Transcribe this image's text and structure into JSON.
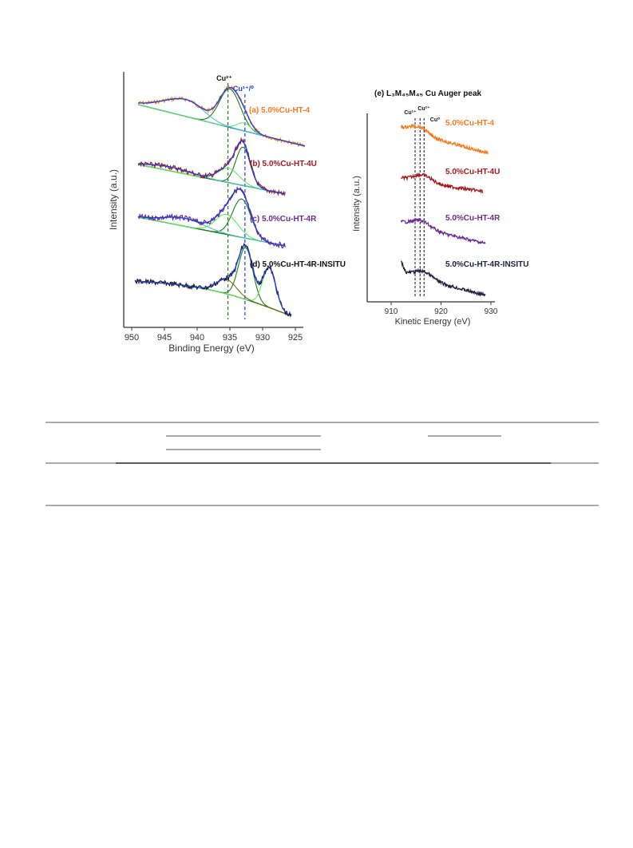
{
  "colors": {
    "orange": "#f47b20",
    "red": "#a6191c",
    "purple": "#6a2c8c",
    "black": "#111111",
    "darkgreen": "#1d7a1d",
    "blue": "#1f3ed6",
    "navy": "#1b2140",
    "cyan": "#46c4d1",
    "lime": "#62e862",
    "olive": "#7a6a0c"
  },
  "chart_data": [
    {
      "type": "line",
      "panel": "xps",
      "xlabel": "Binding Energy (eV)",
      "ylabel": "Intensity (a.u.)",
      "xlim": [
        952,
        922
      ],
      "x_reversed": true,
      "x_ticks": [
        "950",
        "945",
        "940",
        "935",
        "930",
        "925"
      ],
      "reference_lines": [
        {
          "label": "Cu²⁺",
          "x": 935.3,
          "style": "dashed",
          "color": "#1d7a1d"
        },
        {
          "label": "Cu¹⁺/⁰",
          "x": 932.7,
          "style": "dashed",
          "color": "#1f3ed6"
        }
      ],
      "series": [
        {
          "name": "(a) 5.0%Cu-HT-4",
          "color": "#f47b20",
          "x_range": [
            949,
            923.5
          ]
        },
        {
          "name": "(b) 5.0%Cu-HT-4U",
          "color": "#a6191c",
          "x_range": [
            949,
            926.5
          ]
        },
        {
          "name": "(c) 5.0%Cu-HT-4R",
          "color": "#6a2c8c",
          "x_range": [
            949,
            926.5
          ]
        },
        {
          "name": "(d) 5.0%Cu-HT-4R-INSITU",
          "color": "#111111",
          "x_range": [
            949.5,
            925.5
          ]
        }
      ]
    },
    {
      "type": "line",
      "panel": "auger",
      "title": "(e) L₃M₄₅M₄₅ Cu Auger peak",
      "xlabel": "Kinetic Energy (eV)",
      "ylabel": "Intensity (a.u.)",
      "xlim": [
        905,
        930
      ],
      "x_ticks": [
        "910",
        "920",
        "930"
      ],
      "reference_lines": [
        {
          "label": "Cu¹⁺",
          "x": 914.8,
          "style": "dashed"
        },
        {
          "label": "Cu²⁺",
          "x": 915.8,
          "style": "dashed"
        },
        {
          "label": "Cu⁰",
          "x": 916.6,
          "style": "dashed"
        }
      ],
      "series": [
        {
          "name": "5.0%Cu-HT-4",
          "color": "#f47b20",
          "x_range": [
            912,
            929.5
          ],
          "peak": 915.5
        },
        {
          "name": "5.0%Cu-HT-4U",
          "color": "#a6191c",
          "x_range": [
            912,
            928.5
          ],
          "peak": 916.3
        },
        {
          "name": "5.0%Cu-HT-4R",
          "color": "#6a2c8c",
          "x_range": [
            912,
            929
          ],
          "peak": 916.0
        },
        {
          "name": "5.0%Cu-HT-4R-INSITU",
          "color": "#1b2140",
          "x_range": [
            912,
            929
          ],
          "peak": 916.5
        }
      ]
    }
  ]
}
